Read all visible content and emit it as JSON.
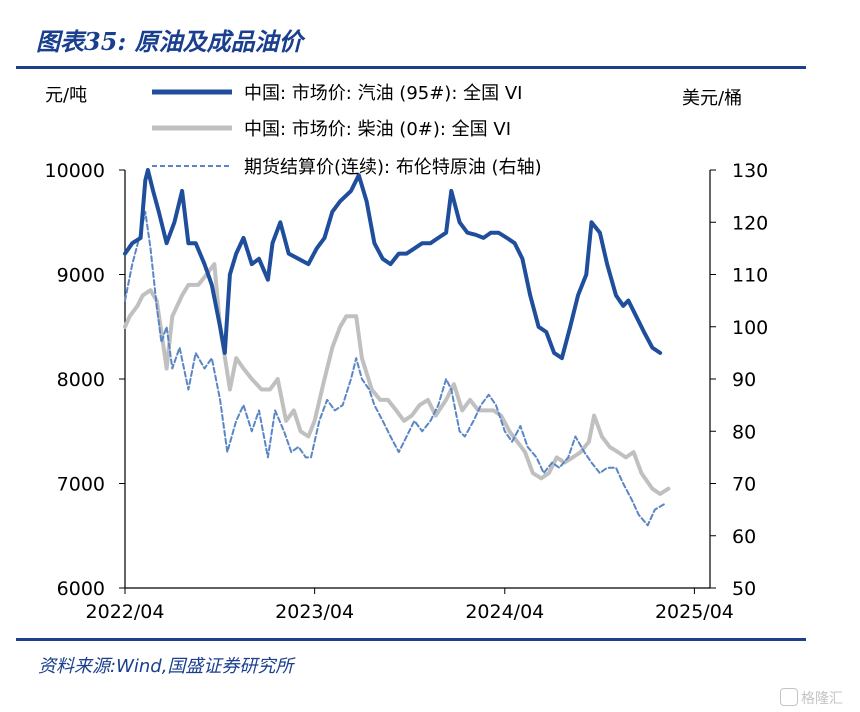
{
  "header": {
    "title": "图表35:  原油及成品油价"
  },
  "footer": {
    "source": "资料来源:Wind,国盛证券研究所",
    "watermark": "格隆汇"
  },
  "chart_data": {
    "type": "line",
    "ylabel_left": "元/吨",
    "ylabel_right": "美元/桶",
    "ylim_left": [
      6000,
      10000
    ],
    "ylim_right": [
      50,
      130
    ],
    "yticks_left": [
      6000,
      7000,
      8000,
      9000,
      10000
    ],
    "yticks_right": [
      50,
      60,
      70,
      80,
      90,
      100,
      110,
      120,
      130
    ],
    "xlim": [
      "2022-04",
      "2025-05"
    ],
    "xticks": [
      "2022/04",
      "2023/04",
      "2024/04",
      "2025/04"
    ],
    "legend_position": "top",
    "series": [
      {
        "name": "中国: 市场价: 汽油 (95#): 全国 VI",
        "axis": "left",
        "color": "#1f4e9c",
        "style": "solid-thick",
        "points": [
          [
            "2022-04-01",
            9200
          ],
          [
            "2022-04-15",
            9300
          ],
          [
            "2022-05-01",
            9350
          ],
          [
            "2022-05-10",
            9900
          ],
          [
            "2022-05-15",
            10000
          ],
          [
            "2022-05-25",
            9800
          ],
          [
            "2022-06-05",
            9600
          ],
          [
            "2022-06-20",
            9300
          ],
          [
            "2022-07-05",
            9500
          ],
          [
            "2022-07-20",
            9800
          ],
          [
            "2022-08-01",
            9300
          ],
          [
            "2022-08-15",
            9300
          ],
          [
            "2022-09-01",
            9100
          ],
          [
            "2022-09-15",
            8900
          ],
          [
            "2022-10-01",
            8500
          ],
          [
            "2022-10-10",
            8250
          ],
          [
            "2022-10-20",
            9000
          ],
          [
            "2022-11-01",
            9200
          ],
          [
            "2022-11-15",
            9350
          ],
          [
            "2022-12-01",
            9100
          ],
          [
            "2022-12-15",
            9150
          ],
          [
            "2023-01-01",
            8950
          ],
          [
            "2023-01-10",
            9300
          ],
          [
            "2023-01-25",
            9500
          ],
          [
            "2023-02-10",
            9200
          ],
          [
            "2023-03-01",
            9150
          ],
          [
            "2023-03-20",
            9100
          ],
          [
            "2023-04-05",
            9250
          ],
          [
            "2023-04-20",
            9350
          ],
          [
            "2023-05-05",
            9600
          ],
          [
            "2023-05-20",
            9700
          ],
          [
            "2023-06-10",
            9800
          ],
          [
            "2023-06-25",
            9950
          ],
          [
            "2023-07-10",
            9700
          ],
          [
            "2023-07-25",
            9300
          ],
          [
            "2023-08-10",
            9150
          ],
          [
            "2023-08-25",
            9100
          ],
          [
            "2023-09-10",
            9200
          ],
          [
            "2023-09-25",
            9200
          ],
          [
            "2023-10-10",
            9250
          ],
          [
            "2023-10-25",
            9300
          ],
          [
            "2023-11-10",
            9300
          ],
          [
            "2023-11-25",
            9350
          ],
          [
            "2023-12-10",
            9400
          ],
          [
            "2023-12-20",
            9800
          ],
          [
            "2024-01-05",
            9500
          ],
          [
            "2024-01-20",
            9400
          ],
          [
            "2024-02-05",
            9380
          ],
          [
            "2024-02-20",
            9350
          ],
          [
            "2024-03-05",
            9400
          ],
          [
            "2024-03-20",
            9400
          ],
          [
            "2024-04-05",
            9350
          ],
          [
            "2024-04-20",
            9300
          ],
          [
            "2024-05-05",
            9150
          ],
          [
            "2024-05-20",
            8800
          ],
          [
            "2024-06-05",
            8500
          ],
          [
            "2024-06-20",
            8450
          ],
          [
            "2024-07-05",
            8250
          ],
          [
            "2024-07-20",
            8200
          ],
          [
            "2024-08-05",
            8500
          ],
          [
            "2024-08-20",
            8800
          ],
          [
            "2024-09-05",
            9000
          ],
          [
            "2024-09-15",
            9500
          ],
          [
            "2024-10-01",
            9400
          ],
          [
            "2024-10-15",
            9100
          ],
          [
            "2024-11-01",
            8800
          ],
          [
            "2024-11-15",
            8700
          ],
          [
            "2024-11-25",
            8750
          ],
          [
            "2024-12-10",
            8600
          ],
          [
            "2024-12-25",
            8450
          ],
          [
            "2025-01-10",
            8300
          ],
          [
            "2025-01-25",
            8250
          ]
        ]
      },
      {
        "name": "中国: 市场价: 柴油 (0#): 全国 VI",
        "axis": "left",
        "color": "#c0c0c0",
        "style": "solid-thick",
        "points": [
          [
            "2022-04-01",
            8500
          ],
          [
            "2022-04-10",
            8600
          ],
          [
            "2022-04-25",
            8700
          ],
          [
            "2022-05-05",
            8800
          ],
          [
            "2022-05-20",
            8850
          ],
          [
            "2022-06-01",
            8750
          ],
          [
            "2022-06-10",
            8450
          ],
          [
            "2022-06-20",
            8100
          ],
          [
            "2022-07-01",
            8600
          ],
          [
            "2022-07-20",
            8800
          ],
          [
            "2022-08-01",
            8900
          ],
          [
            "2022-08-20",
            8900
          ],
          [
            "2022-09-05",
            9000
          ],
          [
            "2022-09-20",
            9100
          ],
          [
            "2022-10-01",
            8500
          ],
          [
            "2022-10-20",
            7900
          ],
          [
            "2022-11-01",
            8200
          ],
          [
            "2022-11-15",
            8100
          ],
          [
            "2022-12-01",
            8000
          ],
          [
            "2022-12-20",
            7900
          ],
          [
            "2023-01-05",
            7900
          ],
          [
            "2023-01-20",
            8000
          ],
          [
            "2023-02-05",
            7600
          ],
          [
            "2023-02-20",
            7700
          ],
          [
            "2023-03-05",
            7500
          ],
          [
            "2023-03-20",
            7450
          ],
          [
            "2023-04-01",
            7600
          ],
          [
            "2023-04-20",
            8000
          ],
          [
            "2023-05-05",
            8300
          ],
          [
            "2023-05-20",
            8500
          ],
          [
            "2023-06-01",
            8600
          ],
          [
            "2023-06-20",
            8600
          ],
          [
            "2023-07-01",
            8200
          ],
          [
            "2023-07-20",
            7900
          ],
          [
            "2023-08-05",
            7800
          ],
          [
            "2023-08-20",
            7800
          ],
          [
            "2023-09-05",
            7700
          ],
          [
            "2023-09-20",
            7600
          ],
          [
            "2023-10-05",
            7650
          ],
          [
            "2023-10-20",
            7750
          ],
          [
            "2023-11-05",
            7800
          ],
          [
            "2023-11-20",
            7650
          ],
          [
            "2023-12-10",
            7800
          ],
          [
            "2023-12-25",
            7950
          ],
          [
            "2024-01-10",
            7700
          ],
          [
            "2024-01-25",
            7800
          ],
          [
            "2024-02-10",
            7700
          ],
          [
            "2024-02-25",
            7700
          ],
          [
            "2024-03-10",
            7700
          ],
          [
            "2024-03-25",
            7650
          ],
          [
            "2024-04-10",
            7500
          ],
          [
            "2024-04-25",
            7400
          ],
          [
            "2024-05-10",
            7300
          ],
          [
            "2024-05-25",
            7100
          ],
          [
            "2024-06-10",
            7050
          ],
          [
            "2024-06-25",
            7100
          ],
          [
            "2024-07-10",
            7250
          ],
          [
            "2024-07-25",
            7200
          ],
          [
            "2024-08-10",
            7250
          ],
          [
            "2024-08-25",
            7300
          ],
          [
            "2024-09-10",
            7400
          ],
          [
            "2024-09-20",
            7650
          ],
          [
            "2024-10-05",
            7450
          ],
          [
            "2024-10-20",
            7350
          ],
          [
            "2024-11-05",
            7300
          ],
          [
            "2024-11-20",
            7250
          ],
          [
            "2024-12-05",
            7300
          ],
          [
            "2024-12-20",
            7100
          ],
          [
            "2025-01-10",
            6950
          ],
          [
            "2025-01-25",
            6900
          ],
          [
            "2025-02-10",
            6950
          ]
        ]
      },
      {
        "name": "期货结算价(连续): 布伦特原油 (右轴)",
        "axis": "right",
        "color": "#5a86c5",
        "style": "dashed",
        "points": [
          [
            "2022-04-01",
            105
          ],
          [
            "2022-04-15",
            112
          ],
          [
            "2022-05-01",
            118
          ],
          [
            "2022-05-10",
            122
          ],
          [
            "2022-05-20",
            115
          ],
          [
            "2022-06-01",
            104
          ],
          [
            "2022-06-10",
            97
          ],
          [
            "2022-06-20",
            100
          ],
          [
            "2022-07-01",
            92
          ],
          [
            "2022-07-15",
            96
          ],
          [
            "2022-08-01",
            88
          ],
          [
            "2022-08-15",
            95
          ],
          [
            "2022-09-01",
            92
          ],
          [
            "2022-09-15",
            94
          ],
          [
            "2022-10-01",
            86
          ],
          [
            "2022-10-15",
            76
          ],
          [
            "2022-11-01",
            82
          ],
          [
            "2022-11-15",
            85
          ],
          [
            "2022-12-01",
            80
          ],
          [
            "2022-12-15",
            84
          ],
          [
            "2023-01-01",
            75
          ],
          [
            "2023-01-15",
            84
          ],
          [
            "2023-02-01",
            80
          ],
          [
            "2023-02-15",
            76
          ],
          [
            "2023-03-01",
            77
          ],
          [
            "2023-03-15",
            75
          ],
          [
            "2023-03-25",
            75
          ],
          [
            "2023-04-10",
            82
          ],
          [
            "2023-04-25",
            86
          ],
          [
            "2023-05-10",
            84
          ],
          [
            "2023-05-25",
            85
          ],
          [
            "2023-06-10",
            90
          ],
          [
            "2023-06-20",
            94
          ],
          [
            "2023-07-01",
            90
          ],
          [
            "2023-07-15",
            88
          ],
          [
            "2023-07-25",
            85
          ],
          [
            "2023-08-10",
            82
          ],
          [
            "2023-08-25",
            79
          ],
          [
            "2023-09-10",
            76
          ],
          [
            "2023-09-25",
            79
          ],
          [
            "2023-10-10",
            82
          ],
          [
            "2023-10-25",
            80
          ],
          [
            "2023-11-10",
            82
          ],
          [
            "2023-11-25",
            85
          ],
          [
            "2023-12-10",
            90
          ],
          [
            "2023-12-20",
            88
          ],
          [
            "2024-01-05",
            80
          ],
          [
            "2024-01-15",
            79
          ],
          [
            "2024-02-01",
            82
          ],
          [
            "2024-02-15",
            85
          ],
          [
            "2024-03-01",
            87
          ],
          [
            "2024-03-15",
            85
          ],
          [
            "2024-04-01",
            80
          ],
          [
            "2024-04-15",
            78
          ],
          [
            "2024-05-01",
            81
          ],
          [
            "2024-05-15",
            77
          ],
          [
            "2024-06-01",
            75
          ],
          [
            "2024-06-15",
            72
          ],
          [
            "2024-07-01",
            74
          ],
          [
            "2024-07-15",
            73
          ],
          [
            "2024-08-01",
            75
          ],
          [
            "2024-08-15",
            79
          ],
          [
            "2024-09-01",
            76
          ],
          [
            "2024-09-15",
            74
          ],
          [
            "2024-10-01",
            72
          ],
          [
            "2024-10-15",
            73
          ],
          [
            "2024-11-01",
            73
          ],
          [
            "2024-11-15",
            70
          ],
          [
            "2024-12-01",
            67
          ],
          [
            "2024-12-15",
            64
          ],
          [
            "2025-01-01",
            62
          ],
          [
            "2025-01-15",
            65
          ],
          [
            "2025-02-01",
            66
          ]
        ]
      }
    ]
  }
}
